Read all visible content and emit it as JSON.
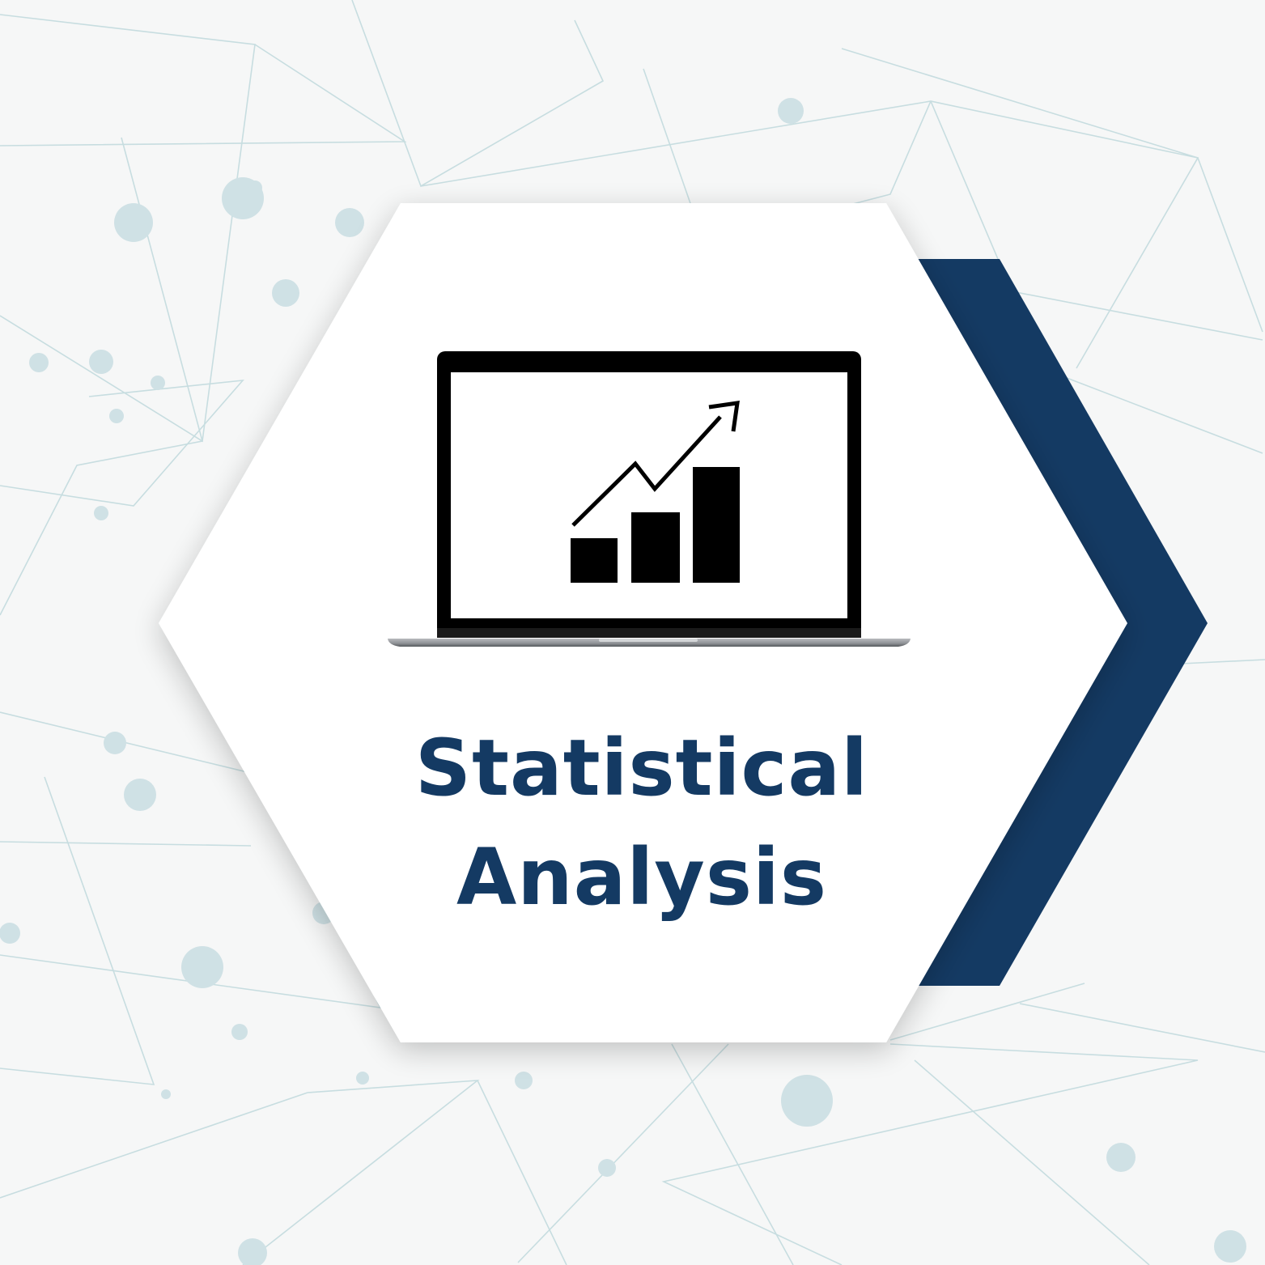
{
  "card": {
    "title_line1": "Statistical",
    "title_line2": "Analysis",
    "icon": "laptop-growth-chart-icon"
  },
  "colors": {
    "background": "#f6f7f7",
    "network_lines": "#c7dde0",
    "network_nodes": "#cfe1e5",
    "hexagon_fill": "#ffffff",
    "accent_chevron": "#143a63",
    "title_text": "#143a63",
    "icon_ink": "#000000"
  }
}
